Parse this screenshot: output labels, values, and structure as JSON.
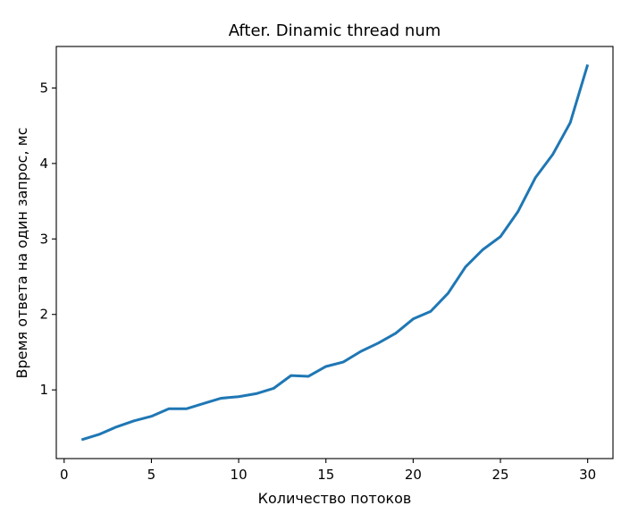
{
  "chart_data": {
    "type": "line",
    "title": "After. Dinamic thread num",
    "xlabel": "Количество потоков",
    "ylabel": "Время ответа на один запрос, мс",
    "xlim": [
      -0.45,
      31.45
    ],
    "ylim": [
      0.09,
      5.55
    ],
    "xticks": [
      0,
      5,
      10,
      15,
      20,
      25,
      30
    ],
    "yticks": [
      1,
      2,
      3,
      4,
      5
    ],
    "grid": false,
    "legend": "none",
    "colors": {
      "line": "#1f77b4",
      "axes": "#000000",
      "background": "#ffffff"
    },
    "series": [
      {
        "x": [
          1,
          2,
          3,
          4,
          5,
          6,
          7,
          8,
          9,
          10,
          11,
          12,
          13,
          14,
          15,
          16,
          17,
          18,
          19,
          20,
          21,
          22,
          23,
          24,
          25,
          26,
          27,
          28,
          29,
          30
        ],
        "values": [
          0.34,
          0.41,
          0.51,
          0.59,
          0.65,
          0.75,
          0.75,
          0.82,
          0.89,
          0.91,
          0.95,
          1.02,
          1.19,
          1.18,
          1.31,
          1.37,
          1.51,
          1.62,
          1.75,
          1.94,
          2.04,
          2.28,
          2.63,
          2.86,
          3.03,
          3.36,
          3.81,
          4.12,
          4.54,
          5.31
        ]
      }
    ]
  }
}
